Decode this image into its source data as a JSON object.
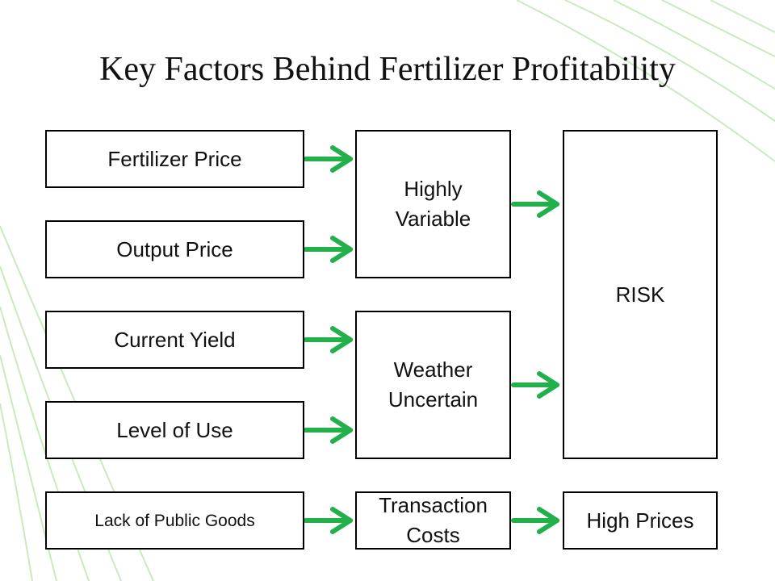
{
  "title": "Key Factors Behind Fertilizer Profitability",
  "nodes": [
    {
      "lines": [
        "Fertilizer Price"
      ]
    },
    {
      "lines": [
        "Output Price"
      ]
    },
    {
      "lines": [
        "Current Yield"
      ]
    },
    {
      "lines": [
        "Level of Use"
      ]
    },
    {
      "lines": [
        "Lack of Public Goods"
      ]
    },
    {
      "lines": [
        "Highly",
        "Variable"
      ]
    },
    {
      "lines": [
        "Weather",
        "Uncertain"
      ]
    },
    {
      "lines": [
        "Transaction",
        "Costs"
      ]
    },
    {
      "lines": [
        "RISK"
      ]
    },
    {
      "lines": [
        "High Prices"
      ]
    }
  ]
}
